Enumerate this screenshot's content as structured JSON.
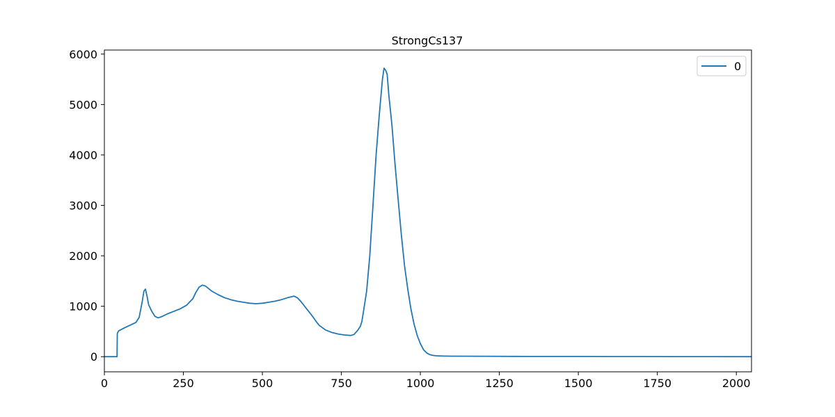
{
  "chart_data": {
    "type": "line",
    "title": "StrongCs137",
    "xlabel": "",
    "ylabel": "",
    "xlim": [
      0,
      2048
    ],
    "ylim": [
      -300,
      6080
    ],
    "xticks": [
      0,
      250,
      500,
      750,
      1000,
      1250,
      1500,
      1750,
      2000
    ],
    "yticks": [
      0,
      1000,
      2000,
      3000,
      4000,
      5000,
      6000
    ],
    "grid": false,
    "legend_position": "top-right",
    "series": [
      {
        "name": "0",
        "color": "#1f77b4",
        "x": [
          0,
          38,
          40,
          41,
          45,
          60,
          80,
          100,
          110,
          120,
          125,
          130,
          135,
          140,
          150,
          160,
          170,
          180,
          190,
          200,
          220,
          240,
          260,
          280,
          290,
          300,
          310,
          320,
          330,
          340,
          360,
          380,
          400,
          420,
          440,
          460,
          480,
          500,
          520,
          540,
          560,
          580,
          600,
          610,
          620,
          630,
          640,
          650,
          660,
          670,
          680,
          700,
          720,
          740,
          760,
          780,
          790,
          800,
          810,
          815,
          820,
          830,
          840,
          850,
          860,
          870,
          880,
          885,
          890,
          895,
          900,
          910,
          920,
          930,
          940,
          950,
          960,
          970,
          980,
          990,
          1000,
          1010,
          1020,
          1030,
          1040,
          1050,
          1060,
          1080,
          1100,
          1200,
          1300,
          1400,
          1500,
          1600,
          1700,
          1800,
          1900,
          2000,
          2048
        ],
        "y": [
          0,
          0,
          0,
          460,
          510,
          560,
          620,
          680,
          780,
          1100,
          1300,
          1340,
          1200,
          1030,
          900,
          800,
          770,
          790,
          820,
          850,
          900,
          950,
          1020,
          1150,
          1280,
          1380,
          1420,
          1400,
          1350,
          1300,
          1230,
          1170,
          1130,
          1100,
          1080,
          1060,
          1050,
          1060,
          1080,
          1100,
          1130,
          1170,
          1200,
          1170,
          1110,
          1030,
          950,
          870,
          790,
          700,
          620,
          530,
          480,
          450,
          430,
          420,
          440,
          510,
          600,
          700,
          900,
          1300,
          2000,
          3000,
          4000,
          4800,
          5500,
          5720,
          5680,
          5600,
          5200,
          4600,
          3800,
          3100,
          2400,
          1800,
          1350,
          950,
          650,
          420,
          260,
          140,
          75,
          40,
          25,
          18,
          15,
          12,
          10,
          8,
          6,
          5,
          4,
          3,
          3,
          2,
          2,
          1,
          0
        ]
      }
    ]
  }
}
